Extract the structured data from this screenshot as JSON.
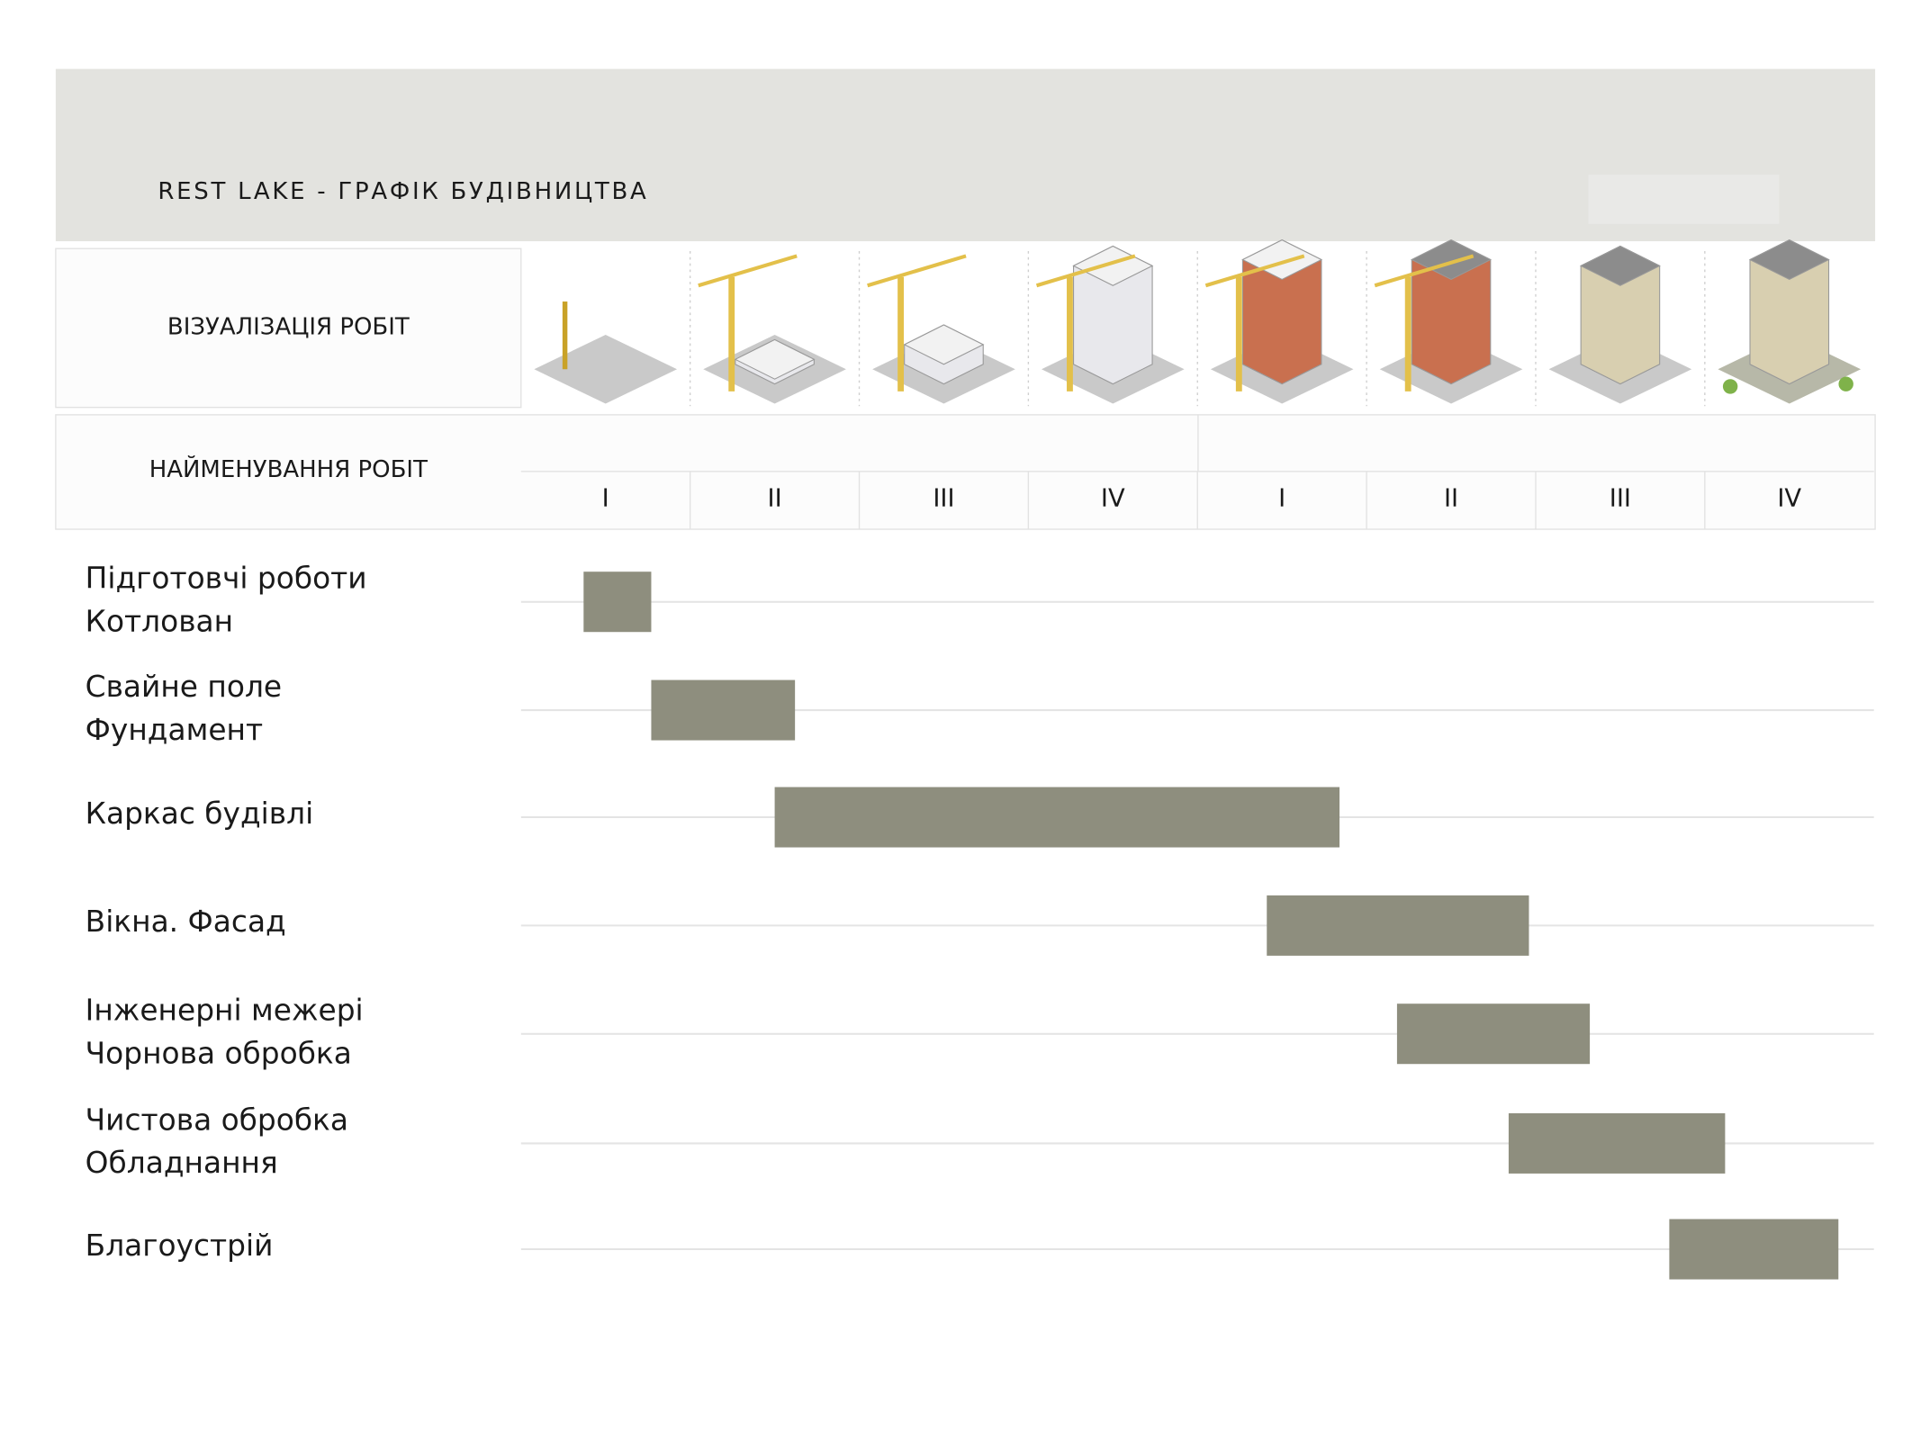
{
  "chart_data": {
    "type": "gantt",
    "title": "REST LAKE - ГРАФІК БУДІВНИЦТВА",
    "visual_header": "ВІЗУАЛІЗАЦІЯ РОБІТ",
    "name_header": "НАЙМЕНУВАННЯ РОБІТ",
    "categories": [
      "I",
      "II",
      "III",
      "IV",
      "I",
      "II",
      "III",
      "IV"
    ],
    "xlim": [
      0,
      8
    ],
    "color": "#8e8e7e",
    "grid": true,
    "tasks": [
      {
        "label": [
          "Підготовчі роботи",
          "Котлован"
        ],
        "start": 0.37,
        "end": 0.77
      },
      {
        "label": [
          "Свайне поле",
          "Фундамент"
        ],
        "start": 0.77,
        "end": 1.62
      },
      {
        "label": [
          "Каркас будівлі"
        ],
        "start": 1.5,
        "end": 4.84
      },
      {
        "label": [
          "Вікна. Фасад"
        ],
        "start": 4.41,
        "end": 5.96
      },
      {
        "label": [
          "Інженерні межері",
          "Чорнова обробка"
        ],
        "start": 5.18,
        "end": 6.32
      },
      {
        "label": [
          "Чистова обробка",
          "Обладнання"
        ],
        "start": 5.84,
        "end": 7.12
      },
      {
        "label": [
          "Благоустрій"
        ],
        "start": 6.79,
        "end": 7.79
      }
    ]
  }
}
